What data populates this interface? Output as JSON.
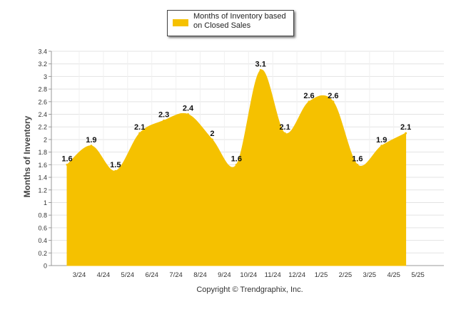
{
  "chart_data": {
    "type": "area",
    "legend": {
      "label": "Months of Inventory based on Closed Sales",
      "placement": "top"
    },
    "ylabel": "Months of Inventory",
    "xlabel": "",
    "categories": [
      "3/24",
      "4/24",
      "5/24",
      "6/24",
      "7/24",
      "8/24",
      "9/24",
      "10/24",
      "11/24",
      "12/24",
      "1/25",
      "2/25",
      "3/25",
      "4/25",
      "5/25"
    ],
    "series": [
      {
        "name": "Months of Inventory based on Closed Sales",
        "values": [
          1.6,
          1.9,
          1.5,
          2.1,
          2.3,
          2.4,
          2,
          1.6,
          3.1,
          2.1,
          2.6,
          2.6,
          1.6,
          1.9,
          2.1
        ]
      }
    ],
    "ylim": [
      0,
      3.4
    ],
    "yticks": [
      "0",
      "0.2",
      "0.4",
      "0.6",
      "0.8",
      "1",
      "1.2",
      "1.4",
      "1.6",
      "1.8",
      "2",
      "2.2",
      "2.4",
      "2.6",
      "2.8",
      "3",
      "3.2",
      "3.4"
    ],
    "grid": true,
    "color": "#f5c100"
  },
  "footer": "Copyright © Trendgraphix, Inc."
}
